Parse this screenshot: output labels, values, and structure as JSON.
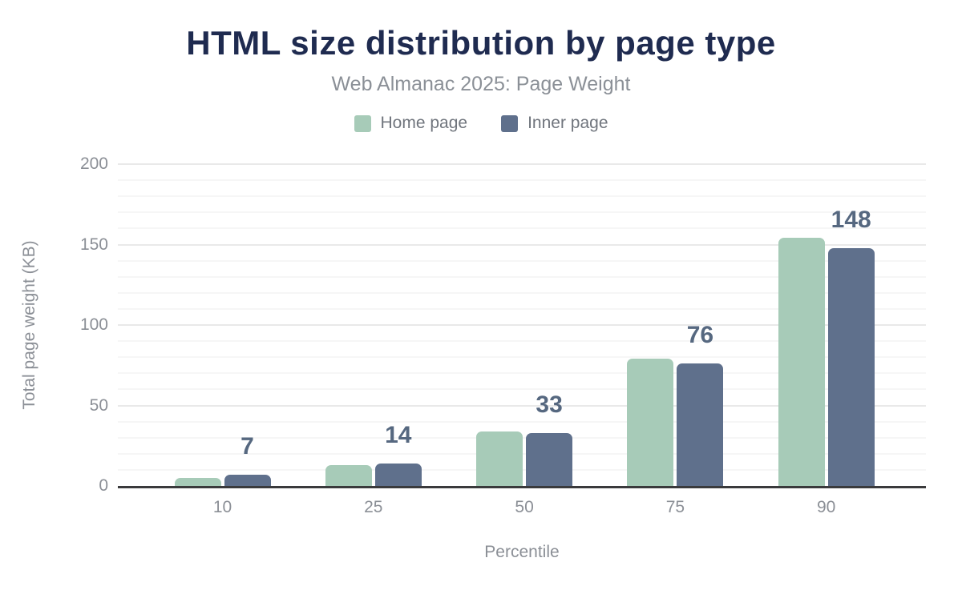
{
  "chart_data": {
    "type": "bar",
    "title": "HTML size distribution by page type",
    "subtitle": "Web Almanac 2025: Page Weight",
    "xlabel": "Percentile",
    "ylabel": "Total page weight (KB)",
    "categories": [
      "10",
      "25",
      "50",
      "75",
      "90"
    ],
    "series": [
      {
        "name": "Home page",
        "color": "#a7cbb8",
        "values": [
          5,
          13,
          34,
          79,
          154
        ]
      },
      {
        "name": "Inner page",
        "color": "#5f708c",
        "values": [
          7,
          14,
          33,
          76,
          148
        ]
      }
    ],
    "data_labels": {
      "series": "Inner page",
      "values": [
        "7",
        "14",
        "33",
        "76",
        "148"
      ]
    },
    "y_ticks": [
      0,
      50,
      100,
      150,
      200
    ],
    "ylim": [
      0,
      200
    ],
    "grid": "horizontal minor every 10, major every 50",
    "legend_position": "top"
  },
  "colors": {
    "title": "#1f2b50",
    "subtitle": "#8b9097",
    "tick_text": "#8b8f96",
    "data_label": "#566880",
    "axis_line": "#3a3a3c",
    "home_page_bar": "#a7cbb8",
    "inner_page_bar": "#5f708c"
  }
}
